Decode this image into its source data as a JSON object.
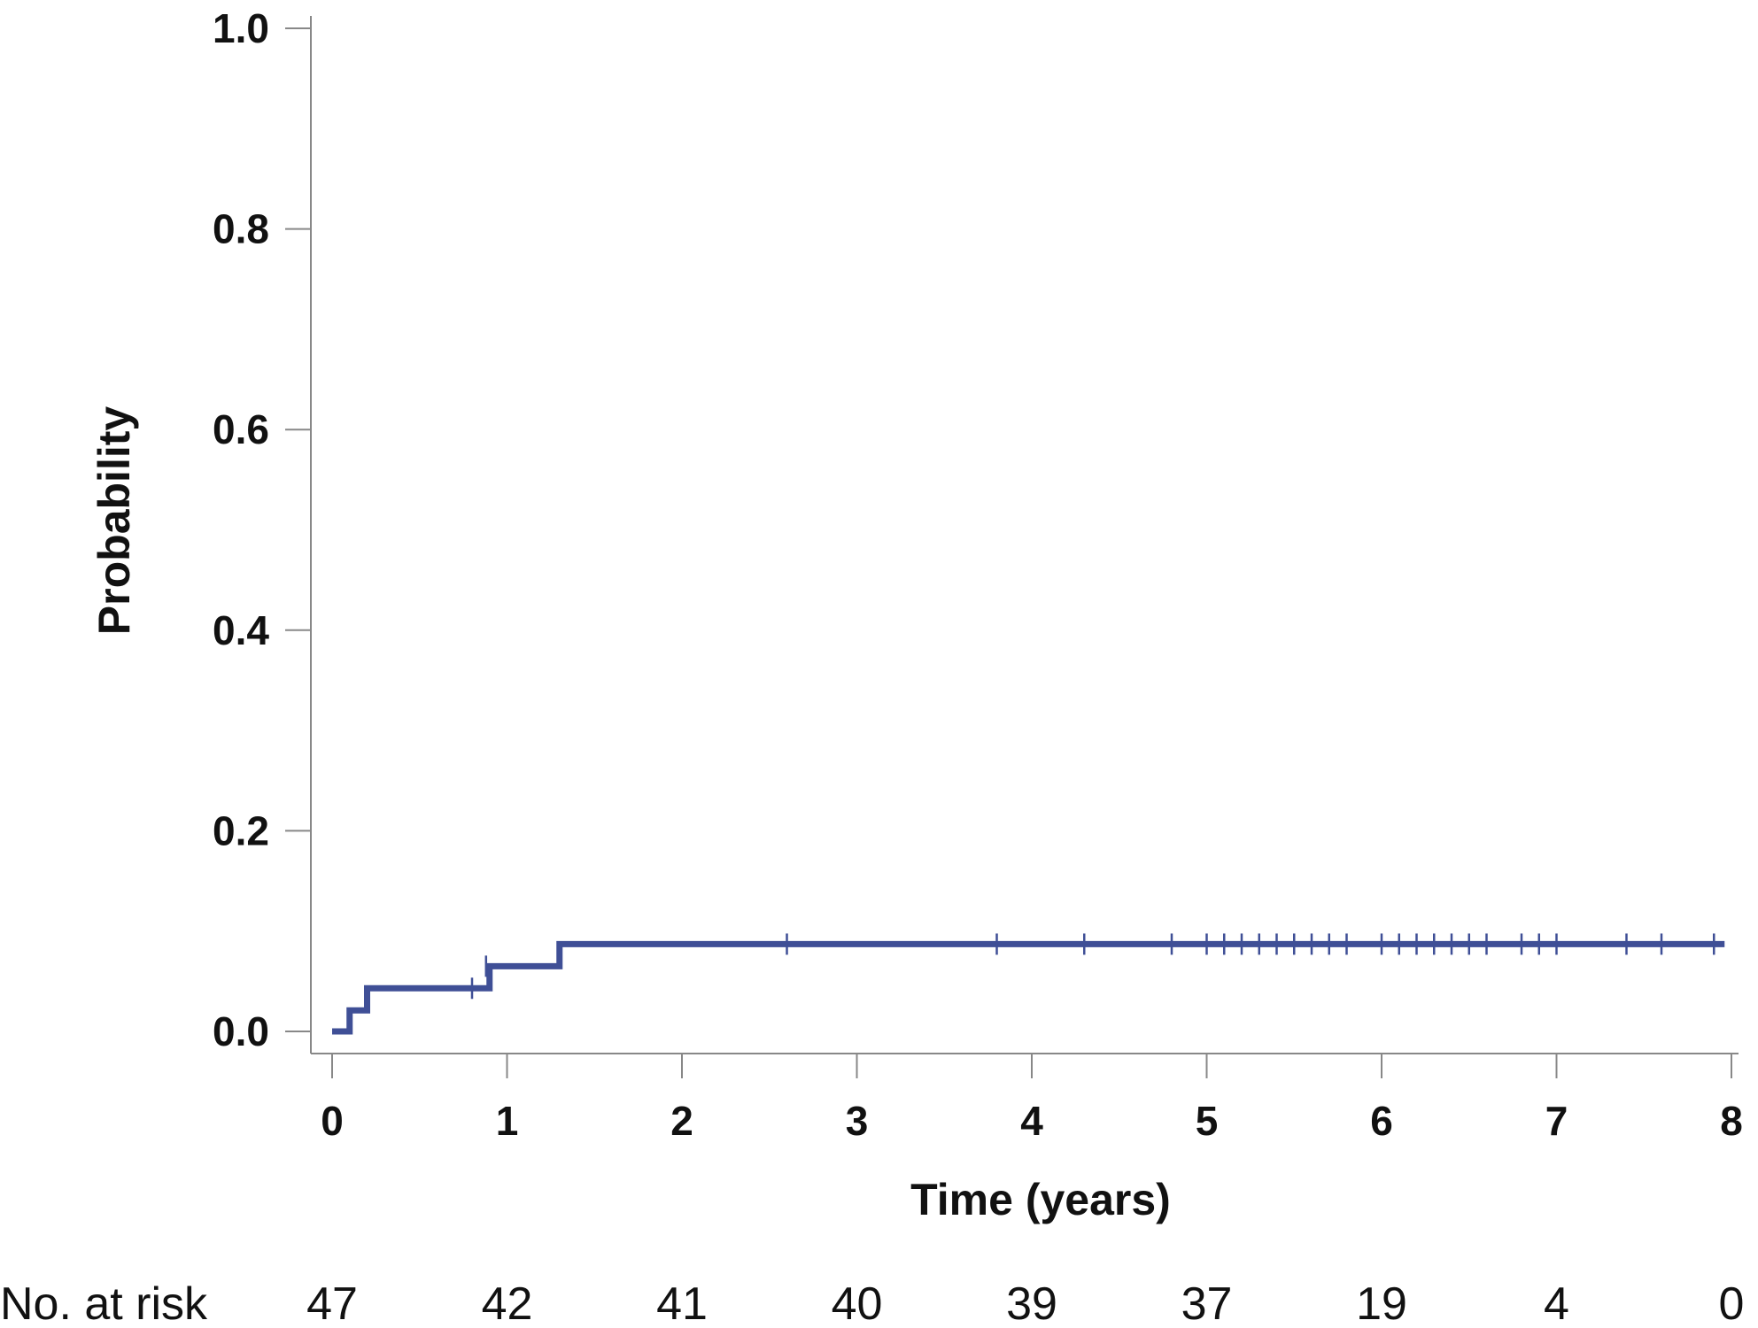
{
  "chart_data": {
    "type": "line",
    "title": "",
    "xlabel": "Time (years)",
    "ylabel": "Probability",
    "xlim": [
      0,
      8
    ],
    "ylim": [
      0,
      1.0
    ],
    "xticks": [
      0,
      1,
      2,
      3,
      4,
      5,
      6,
      7,
      8
    ],
    "xtick_labels": [
      "0",
      "1",
      "2",
      "3",
      "4",
      "5",
      "6",
      "7",
      "8"
    ],
    "yticks": [
      0.0,
      0.2,
      0.4,
      0.6,
      0.8,
      1.0
    ],
    "ytick_labels": [
      "0.0",
      "0.2",
      "0.4",
      "0.6",
      "0.8",
      "1.0"
    ],
    "grid": false,
    "legend": "none",
    "series": [
      {
        "step": true,
        "color": "#3f4f96",
        "x": [
          0,
          0.1,
          0.2,
          0.9,
          1.3,
          7.9
        ],
        "y": [
          0.0,
          0.021,
          0.043,
          0.065,
          0.087,
          0.087
        ],
        "censor_marks": {
          "x": [
            0.8,
            0.88,
            2.6,
            3.8,
            4.3,
            4.8,
            5.0,
            5.1,
            5.2,
            5.3,
            5.4,
            5.5,
            5.6,
            5.7,
            5.8,
            6.0,
            6.1,
            6.2,
            6.3,
            6.4,
            6.5,
            6.6,
            6.8,
            6.9,
            7.0,
            7.4,
            7.6,
            7.9
          ],
          "y": [
            0.043,
            0.065,
            0.087,
            0.087,
            0.087,
            0.087,
            0.087,
            0.087,
            0.087,
            0.087,
            0.087,
            0.087,
            0.087,
            0.087,
            0.087,
            0.087,
            0.087,
            0.087,
            0.087,
            0.087,
            0.087,
            0.087,
            0.087,
            0.087,
            0.087,
            0.087,
            0.087,
            0.087
          ]
        }
      }
    ],
    "risk_table": {
      "label": "No. at risk",
      "times": [
        0,
        1,
        2,
        3,
        4,
        5,
        6,
        7,
        8
      ],
      "values": [
        "47",
        "42",
        "41",
        "40",
        "39",
        "37",
        "19",
        "4",
        "0"
      ]
    }
  }
}
